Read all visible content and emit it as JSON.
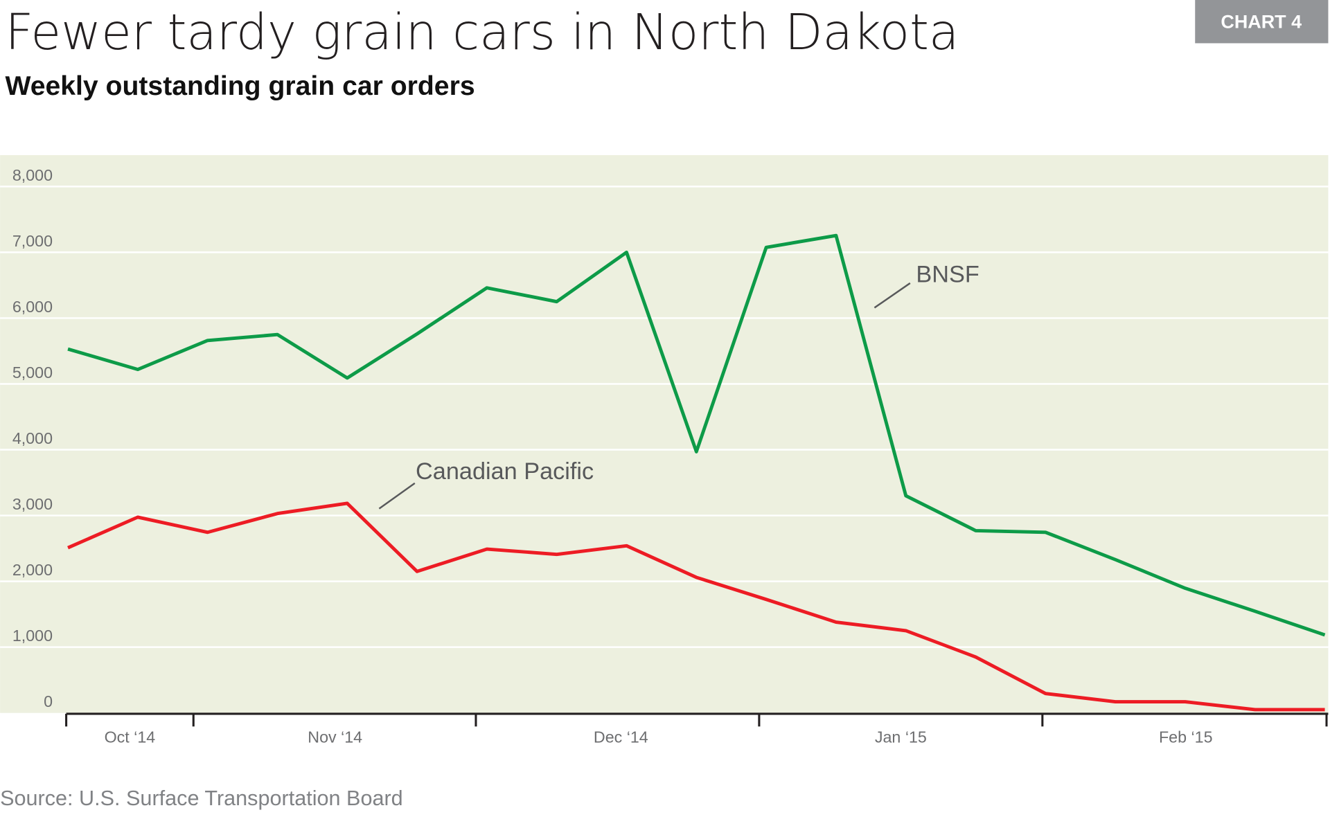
{
  "header": {
    "title": "Fewer tardy grain cars in North Dakota",
    "subtitle": "Weekly outstanding grain car orders",
    "badge": "CHART 4"
  },
  "source": "Source: U.S. Surface Transportation Board",
  "chart_data": {
    "type": "line",
    "title": "Fewer tardy grain cars in North Dakota",
    "subtitle": "Weekly outstanding grain car orders",
    "xlabel": "",
    "ylabel": "",
    "ylim": [
      0,
      8000
    ],
    "yticks": [
      "0",
      "1,000",
      "2,000",
      "3,000",
      "4,000",
      "5,000",
      "6,000",
      "7,000",
      "8,000"
    ],
    "month_labels": [
      "Oct ‘14",
      "Nov ‘14",
      "Dec ‘14",
      "Jan ‘15",
      "Feb ‘15"
    ],
    "grid": true,
    "background": "#edf0df",
    "series": [
      {
        "name": "BNSF",
        "color": "#0d9b48",
        "values": [
          5530,
          5220,
          5660,
          5750,
          5090,
          5760,
          6460,
          6250,
          7000,
          3970,
          7075,
          7255,
          3300,
          2770,
          2745,
          2330,
          1895,
          1545,
          1185
        ]
      },
      {
        "name": "Canadian Pacific",
        "color": "#ed1c24",
        "values": [
          2510,
          2975,
          2745,
          3030,
          3185,
          2150,
          2490,
          2410,
          2540,
          2060,
          1725,
          1380,
          1250,
          850,
          295,
          170,
          170,
          50,
          50
        ]
      }
    ]
  }
}
